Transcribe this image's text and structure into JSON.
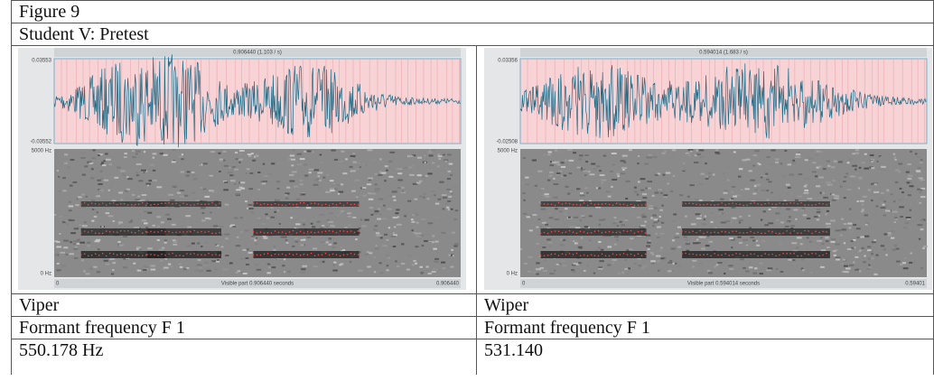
{
  "header": {
    "title": "Figure 9",
    "subtitle": "Student V: Pretest"
  },
  "panels": [
    {
      "top_label": "0.906440 (1.103 / s)",
      "y_top": "0.03553",
      "y_bottom": "-0.03552",
      "freq_top": "5000 Hz",
      "freq_bottom": "0 Hz",
      "time_start": "0",
      "time_end": "0.906440",
      "visible": "Visible part 0.906440 seconds"
    },
    {
      "top_label": "0.594014 (1.683 / s)",
      "y_top": "0.03356",
      "y_bottom": "-0.02508",
      "freq_top": "5000 Hz",
      "freq_bottom": "0 Hz",
      "time_start": "0",
      "time_end": "0.59401",
      "visible": "Visible part 0.594014 seconds"
    }
  ],
  "table": {
    "rows": [
      [
        "Viper",
        "Wiper"
      ],
      [
        "Formant frequency F 1",
        "Formant frequency F 1"
      ],
      [
        "550.178 Hz",
        "531.140"
      ]
    ]
  }
}
